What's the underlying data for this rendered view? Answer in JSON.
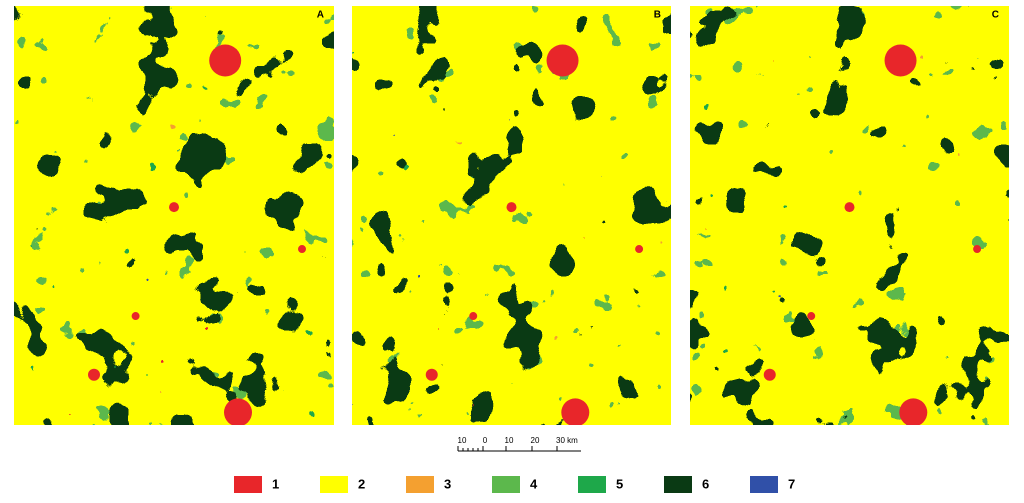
{
  "panels": [
    {
      "label": "A"
    },
    {
      "label": "B"
    },
    {
      "label": "C"
    }
  ],
  "scale_bar": {
    "labels": [
      "10",
      "0",
      "10",
      "20",
      "30 km"
    ]
  },
  "legend": [
    {
      "label": "1",
      "color": "#e8262a"
    },
    {
      "label": "2",
      "color": "#ffff00"
    },
    {
      "label": "3",
      "color": "#f4a030"
    },
    {
      "label": "4",
      "color": "#5cb84c"
    },
    {
      "label": "5",
      "color": "#1ea84a"
    },
    {
      "label": "6",
      "color": "#0a3a14"
    },
    {
      "label": "7",
      "color": "#3050a8"
    }
  ]
}
